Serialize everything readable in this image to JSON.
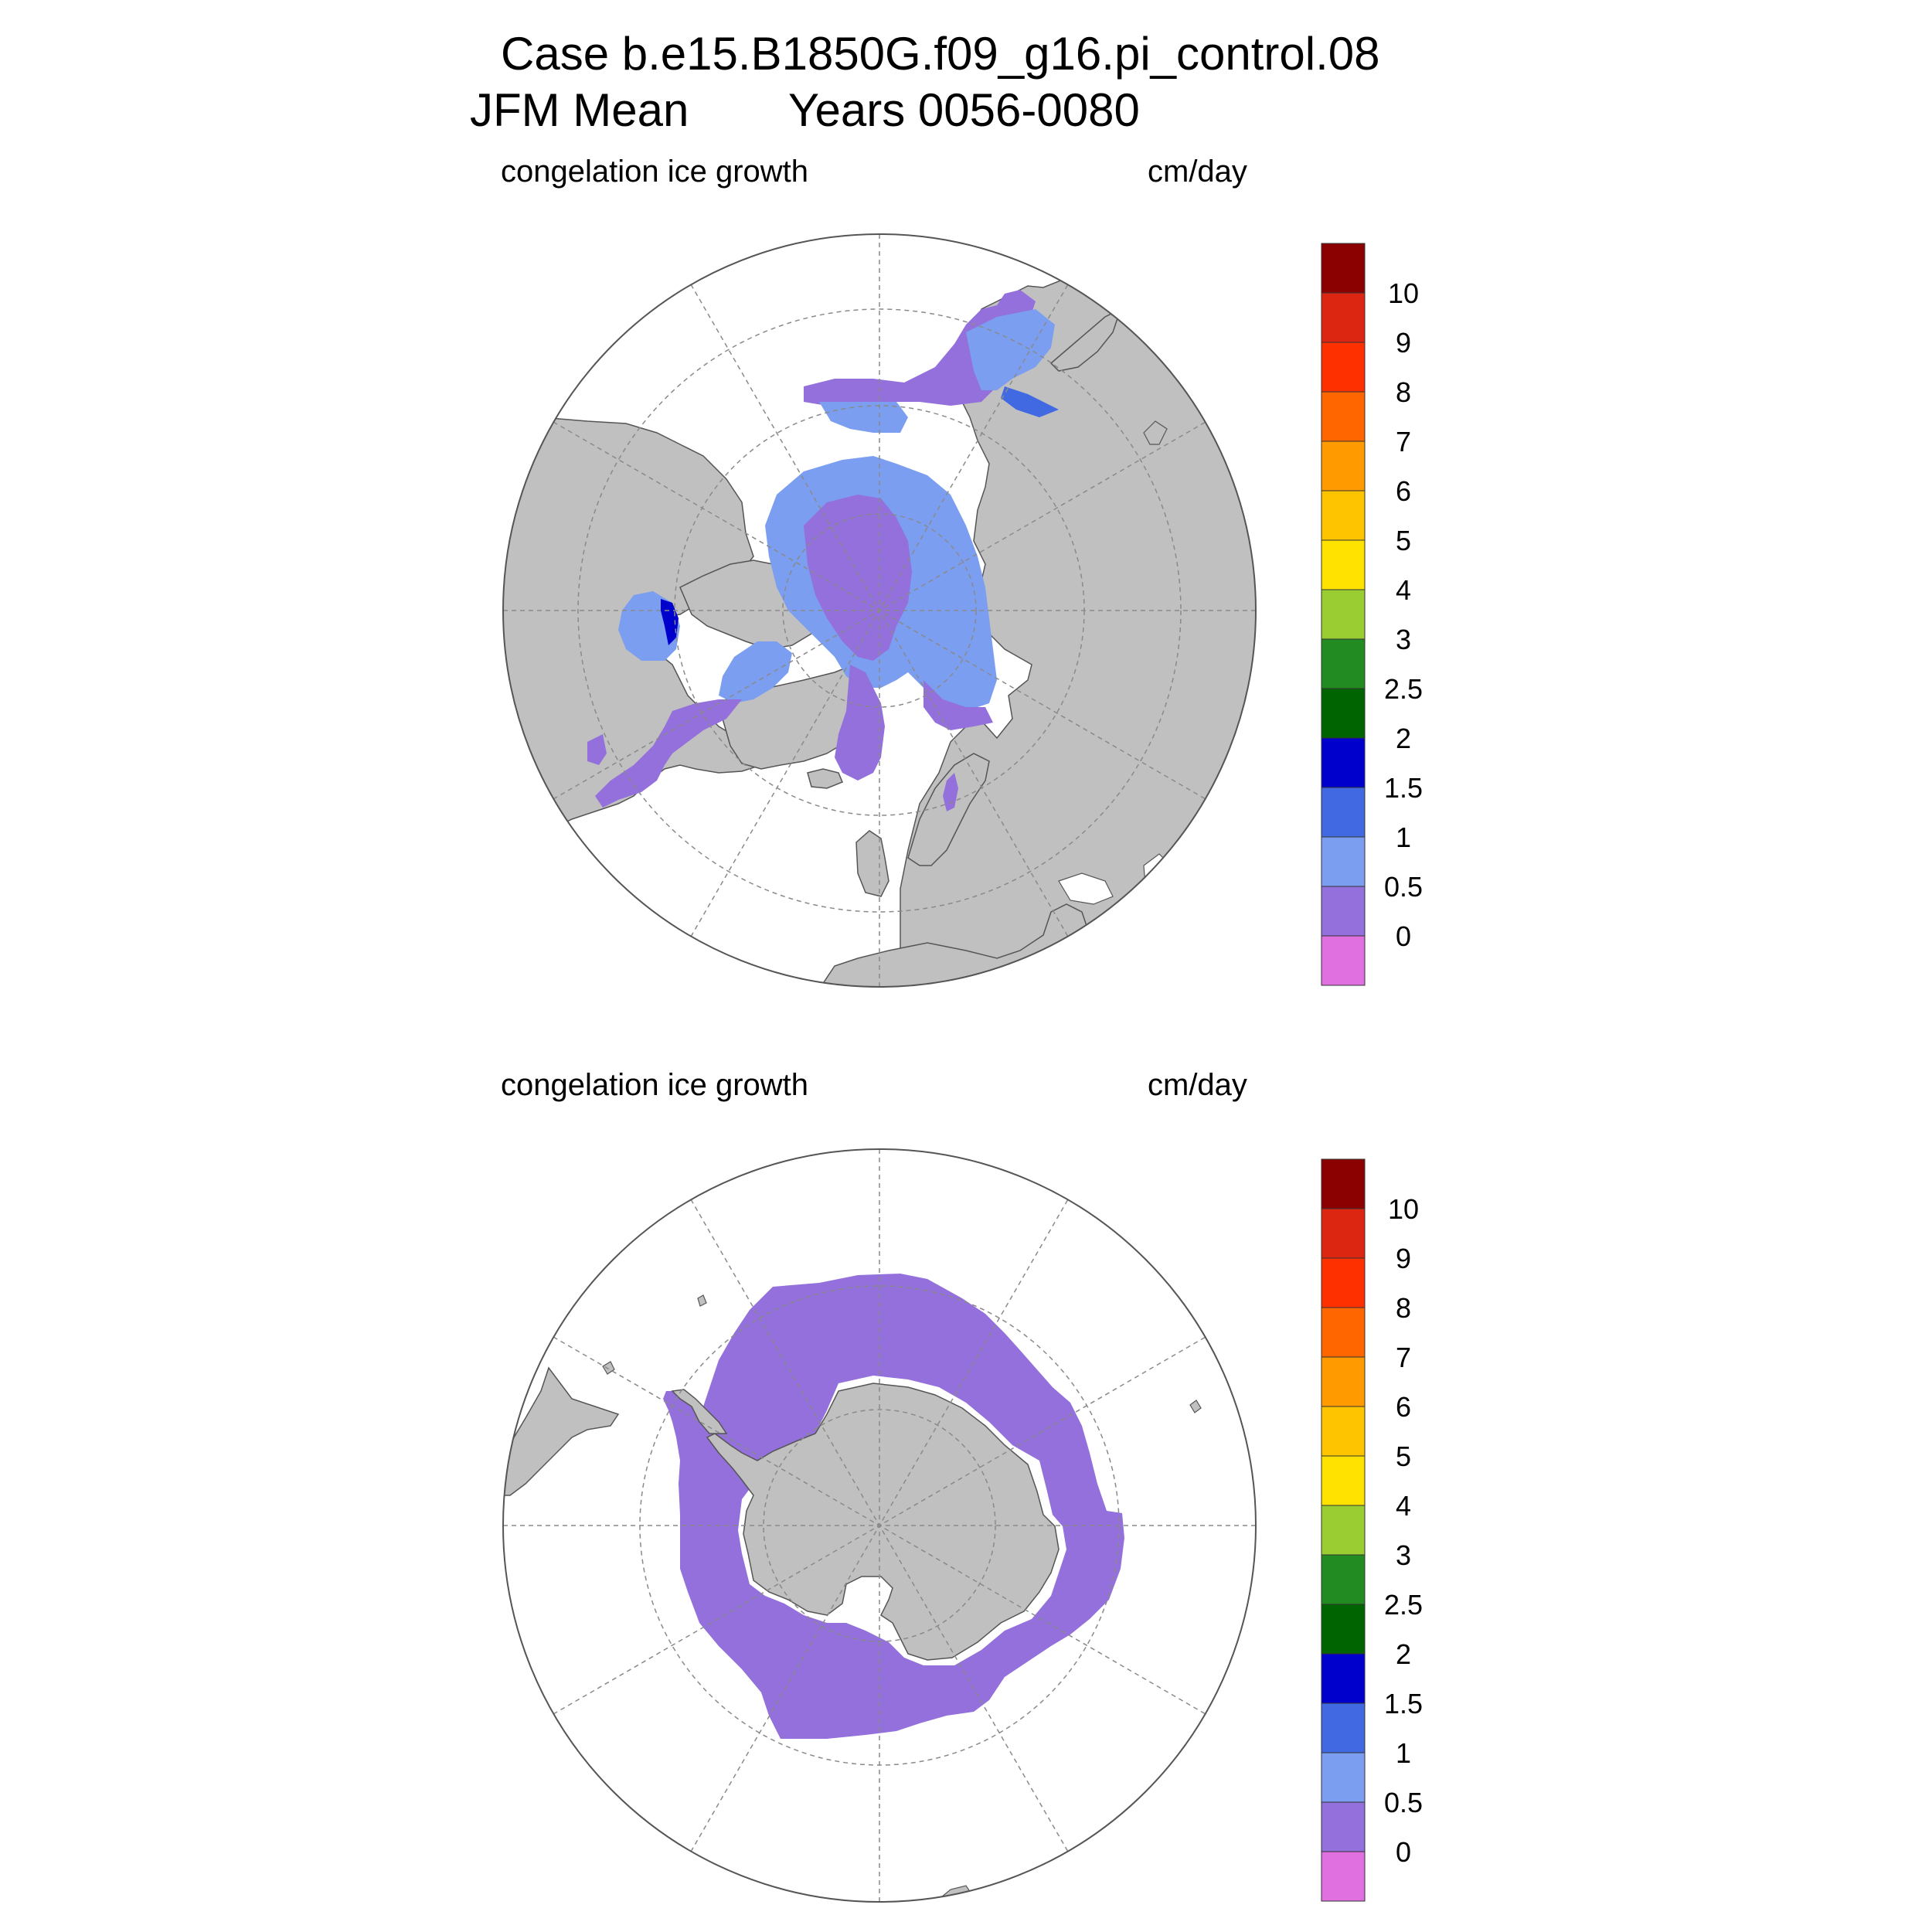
{
  "figure": {
    "title_line1": "Case b.e15.B1850G.f09_g16.pi_control.08",
    "title_line2_left": "JFM Mean",
    "title_line2_right": "Years 0056-0080"
  },
  "colors": {
    "land": "#c0c0c0",
    "ocean": "#ffffff",
    "grid": "#8a8a8a",
    "ice_0_0.5": "#9370db",
    "ice_0.5_1": "#7b9ef0",
    "ice_1_1.5": "#4169e1",
    "ice_1.5_2": "#0000cd"
  },
  "panels": [
    {
      "name": "north",
      "hemisphere": "Arctic",
      "field_label": "congelation ice growth",
      "units_label": "cm/day"
    },
    {
      "name": "south",
      "hemisphere": "Antarctic",
      "field_label": "congelation ice growth",
      "units_label": "cm/day"
    }
  ],
  "colorbar": {
    "levels": [
      "10",
      "9",
      "8",
      "7",
      "6",
      "5",
      "4",
      "3",
      "2.5",
      "2",
      "1.5",
      "1",
      "0.5",
      "0"
    ],
    "colors": [
      "#8b0000",
      "#dc2612",
      "#ff3000",
      "#ff6600",
      "#ff9a00",
      "#ffc400",
      "#ffe200",
      "#9acd32",
      "#228b22",
      "#006400",
      "#0000cd",
      "#4169e1",
      "#7b9ef0",
      "#9370db",
      "#e070e0"
    ]
  }
}
